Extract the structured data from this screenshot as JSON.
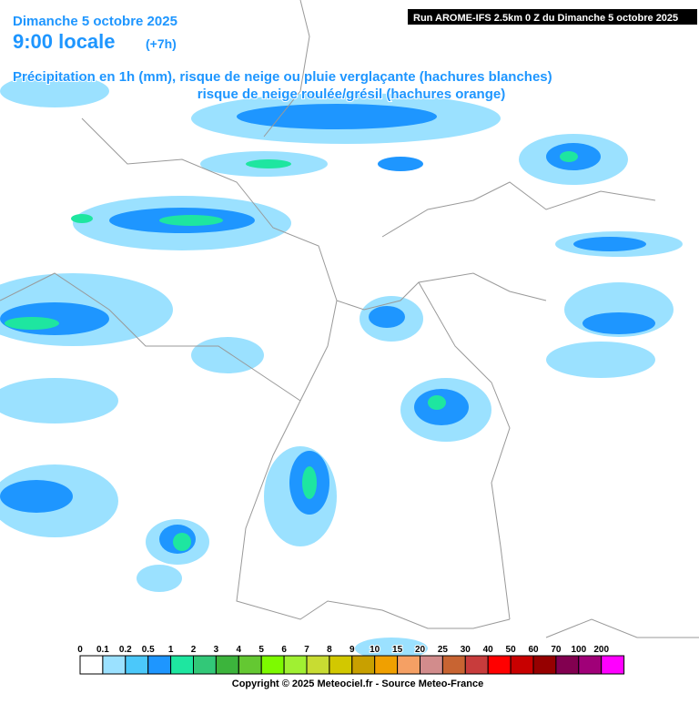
{
  "header": {
    "date": "Dimanche 5 octobre 2025",
    "time": "9:00 locale",
    "offset": "(+7h)",
    "run": "Run AROME-IFS 2.5km 0 Z du Dimanche 5 octobre 2025",
    "line1": "Précipitation en 1h (mm), risque de neige ou pluie verglaçante (hachures blanches)",
    "line2": "risque de neige roulée/grésil (hachures orange)"
  },
  "legend": {
    "items": [
      {
        "value": 0,
        "color": "#ffffff"
      },
      {
        "value": 0.1,
        "color": "#9be1ff"
      },
      {
        "value": 0.2,
        "color": "#4bc8fa"
      },
      {
        "value": 0.5,
        "color": "#1e96ff"
      },
      {
        "value": 1,
        "color": "#1ee6a0"
      },
      {
        "value": 2,
        "color": "#32c878"
      },
      {
        "value": 3,
        "color": "#3cb43c"
      },
      {
        "value": 4,
        "color": "#64c832"
      },
      {
        "value": 5,
        "color": "#7dfa00"
      },
      {
        "value": 6,
        "color": "#a0f032"
      },
      {
        "value": 7,
        "color": "#c8dc32"
      },
      {
        "value": 8,
        "color": "#d2c800"
      },
      {
        "value": 9,
        "color": "#c8a000"
      },
      {
        "value": 10,
        "color": "#f0a000"
      },
      {
        "value": 15,
        "color": "#f5a064"
      },
      {
        "value": 20,
        "color": "#d28c8c"
      },
      {
        "value": 25,
        "color": "#c86432"
      },
      {
        "value": 30,
        "color": "#c83c3c"
      },
      {
        "value": 40,
        "color": "#ff0000"
      },
      {
        "value": 50,
        "color": "#c80000"
      },
      {
        "value": 60,
        "color": "#960000"
      },
      {
        "value": 70,
        "color": "#820050"
      },
      {
        "value": 100,
        "color": "#a00078"
      },
      {
        "value": 200,
        "color": "#ff00ff"
      }
    ]
  },
  "footer": {
    "copyright": "Copyright © 2025 Meteociel.fr - Source Meteo-France"
  }
}
